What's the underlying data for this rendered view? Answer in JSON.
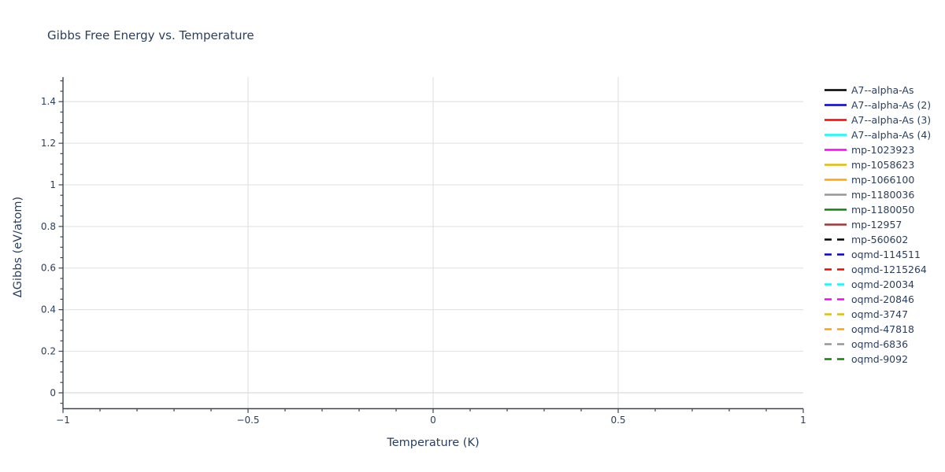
{
  "chart_data": {
    "type": "line",
    "title": "Gibbs Free Energy vs. Temperature",
    "xlabel": "Temperature (K)",
    "ylabel": "ΔGibbs (eV/atom)",
    "xlim": [
      -1,
      1
    ],
    "ylim": [
      -0.076,
      1.518
    ],
    "grid": true,
    "legend_position": "right",
    "x_major_ticks": [
      -1,
      -0.5,
      0,
      0.5,
      1
    ],
    "x_tick_labels": [
      "−1",
      "−0.5",
      "0",
      "0.5",
      "1"
    ],
    "x_minor_step": 0.1,
    "y_major_ticks": [
      0,
      0.2,
      0.4,
      0.6,
      0.8,
      1,
      1.2,
      1.4
    ],
    "y_tick_labels": [
      "0",
      "0.2",
      "0.4",
      "0.6",
      "0.8",
      "1",
      "1.2",
      "1.4"
    ],
    "y_minor_step": 0.05,
    "x_gridline_values": [
      -0.5,
      0,
      0.5
    ],
    "series": [
      {
        "name": "A7--alpha-As",
        "color": "#000000",
        "dash": "solid",
        "values": []
      },
      {
        "name": "A7--alpha-As (2)",
        "color": "#0000ee",
        "dash": "solid",
        "values": []
      },
      {
        "name": "A7--alpha-As (3)",
        "color": "#ff0000",
        "dash": "solid",
        "values": []
      },
      {
        "name": "A7--alpha-As (4)",
        "color": "#00ffff",
        "dash": "solid",
        "values": []
      },
      {
        "name": "mp-1023923",
        "color": "#ff00ff",
        "dash": "solid",
        "values": []
      },
      {
        "name": "mp-1058623",
        "color": "#e3bd00",
        "dash": "solid",
        "values": []
      },
      {
        "name": "mp-1066100",
        "color": "#ffa500",
        "dash": "solid",
        "values": []
      },
      {
        "name": "mp-1180036",
        "color": "#969696",
        "dash": "solid",
        "values": []
      },
      {
        "name": "mp-1180050",
        "color": "#0e830e",
        "dash": "solid",
        "values": []
      },
      {
        "name": "mp-12957",
        "color": "#a83232",
        "dash": "solid",
        "values": []
      },
      {
        "name": "mp-560602",
        "color": "#000000",
        "dash": "dash",
        "values": []
      },
      {
        "name": "oqmd-114511",
        "color": "#0000ee",
        "dash": "dash",
        "values": []
      },
      {
        "name": "oqmd-1215264",
        "color": "#ff0000",
        "dash": "dash",
        "values": []
      },
      {
        "name": "oqmd-20034",
        "color": "#00ffff",
        "dash": "dash",
        "values": []
      },
      {
        "name": "oqmd-20846",
        "color": "#ff00ff",
        "dash": "dash",
        "values": []
      },
      {
        "name": "oqmd-3747",
        "color": "#e3bd00",
        "dash": "dash",
        "values": []
      },
      {
        "name": "oqmd-47818",
        "color": "#ffa500",
        "dash": "dash",
        "values": []
      },
      {
        "name": "oqmd-6836",
        "color": "#969696",
        "dash": "dash",
        "values": []
      },
      {
        "name": "oqmd-9092",
        "color": "#0e830e",
        "dash": "dash",
        "values": []
      }
    ]
  },
  "colors": {
    "text": "#2a3f5f",
    "axis_line": "#3d4452",
    "tick": "#3d4452",
    "gridline": "#e5e5e5",
    "zeroline": "#dcdcdc",
    "background": "#ffffff"
  }
}
